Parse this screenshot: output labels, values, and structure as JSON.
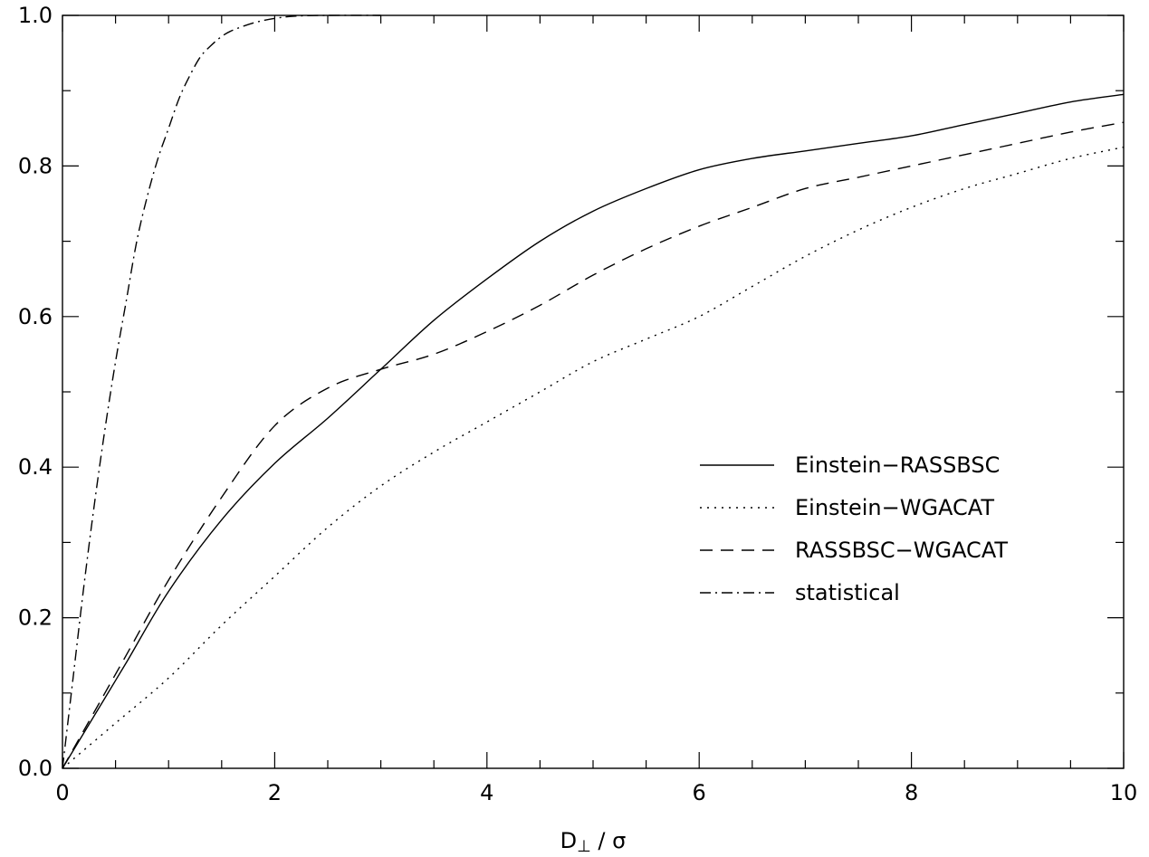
{
  "chart_data": {
    "type": "line",
    "title": "",
    "xlabel_main": "D",
    "xlabel_sub": "⊥",
    "xlabel_rest": " / σ",
    "ylabel": "",
    "xlim": [
      0,
      10
    ],
    "ylim": [
      0,
      1
    ],
    "x_ticks": [
      0,
      2,
      4,
      6,
      8,
      10
    ],
    "x_tick_labels": [
      "0",
      "2",
      "4",
      "6",
      "8",
      "10"
    ],
    "y_ticks": [
      0,
      0.2,
      0.4,
      0.6,
      0.8,
      1.0
    ],
    "y_tick_labels": [
      "0.0",
      "0.2",
      "0.4",
      "0.6",
      "0.8",
      "1.0"
    ],
    "x_minor_step": 0.5,
    "y_minor_step": 0.1,
    "grid": false,
    "legend_position": "right-middle",
    "series": [
      {
        "name": "Einstein−RASSBSC",
        "style": "solid",
        "x": [
          0,
          0.3,
          0.6,
          1.0,
          1.5,
          2.0,
          2.5,
          3.0,
          3.5,
          4.0,
          4.5,
          5.0,
          5.5,
          6.0,
          6.5,
          7.0,
          7.5,
          8.0,
          8.5,
          9.0,
          9.5,
          10.0
        ],
        "y": [
          0,
          0.07,
          0.14,
          0.235,
          0.33,
          0.405,
          0.465,
          0.53,
          0.595,
          0.65,
          0.7,
          0.74,
          0.77,
          0.795,
          0.81,
          0.82,
          0.83,
          0.84,
          0.855,
          0.87,
          0.885,
          0.895
        ]
      },
      {
        "name": "Einstein−WGACAT",
        "style": "dotted",
        "x": [
          0,
          0.5,
          1.0,
          1.5,
          2.0,
          2.5,
          3.0,
          3.5,
          4.0,
          4.5,
          5.0,
          5.5,
          6.0,
          6.5,
          7.0,
          7.5,
          8.0,
          8.5,
          9.0,
          9.5,
          10.0
        ],
        "y": [
          0,
          0.06,
          0.12,
          0.19,
          0.255,
          0.32,
          0.375,
          0.42,
          0.46,
          0.5,
          0.54,
          0.57,
          0.6,
          0.64,
          0.68,
          0.715,
          0.745,
          0.77,
          0.79,
          0.81,
          0.825
        ]
      },
      {
        "name": "RASSBSC−WGACAT",
        "style": "dashed",
        "x": [
          0,
          0.3,
          0.6,
          1.0,
          1.5,
          2.0,
          2.5,
          3.0,
          3.5,
          4.0,
          4.5,
          5.0,
          5.5,
          6.0,
          6.5,
          7.0,
          7.5,
          8.0,
          8.5,
          9.0,
          9.5,
          10.0
        ],
        "y": [
          0,
          0.075,
          0.15,
          0.25,
          0.36,
          0.455,
          0.505,
          0.53,
          0.55,
          0.58,
          0.615,
          0.655,
          0.69,
          0.72,
          0.745,
          0.77,
          0.785,
          0.8,
          0.815,
          0.83,
          0.845,
          0.858
        ]
      },
      {
        "name": "statistical",
        "style": "dashdot",
        "x": [
          0,
          0.1,
          0.2,
          0.3,
          0.4,
          0.5,
          0.6,
          0.7,
          0.8,
          0.9,
          1.0,
          1.1,
          1.2,
          1.3,
          1.4,
          1.5,
          1.6,
          1.8,
          2.0,
          2.2,
          2.5,
          3.0
        ],
        "y": [
          0,
          0.12,
          0.24,
          0.35,
          0.45,
          0.54,
          0.62,
          0.7,
          0.76,
          0.81,
          0.85,
          0.89,
          0.92,
          0.945,
          0.96,
          0.972,
          0.98,
          0.99,
          0.996,
          0.999,
          1.0,
          1.0
        ]
      }
    ]
  }
}
